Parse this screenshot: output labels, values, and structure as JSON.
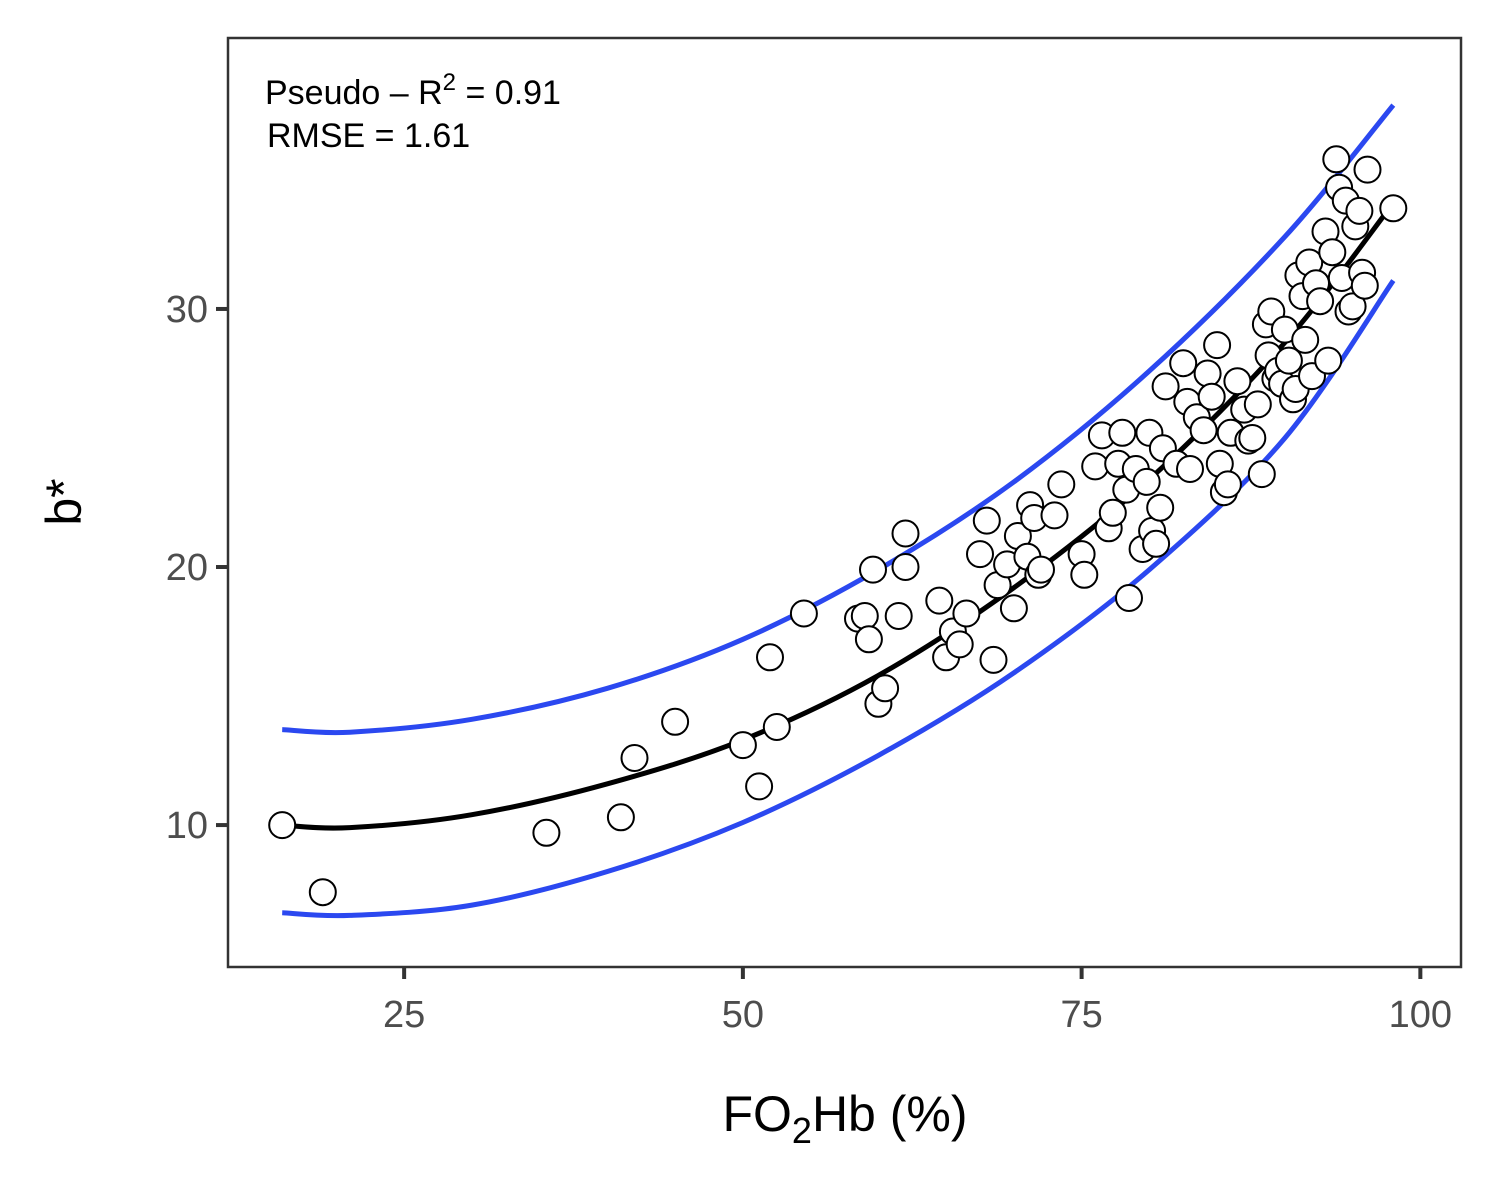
{
  "chart_data": {
    "type": "scatter",
    "xlabel_main": "FO",
    "xlabel_sub": "2",
    "xlabel_rest": "Hb (%)",
    "ylabel": "b*",
    "xlim": [
      12,
      103
    ],
    "ylim": [
      4.5,
      40.5
    ],
    "x_ticks": [
      25,
      50,
      75,
      100
    ],
    "x_tick_labels": [
      "25",
      "50",
      "75",
      "100"
    ],
    "y_ticks": [
      10,
      20,
      30
    ],
    "y_tick_labels": [
      "10",
      "20",
      "30"
    ],
    "grid": false,
    "annotation": {
      "r2_prefix": "Pseudo – R",
      "r2_sup": "2",
      "r2_value": " = 0.91",
      "rmse": "RMSE = 1.61"
    },
    "colors": {
      "fit": "#000000",
      "bounds": "#2b48f0",
      "point_fill": "#ffffff",
      "point_stroke": "#000000"
    },
    "fit": {
      "x_range": [
        16,
        98
      ],
      "points": [
        [
          16,
          10.0
        ],
        [
          21,
          9.9
        ],
        [
          30,
          10.4
        ],
        [
          40,
          11.6
        ],
        [
          50,
          13.3
        ],
        [
          60,
          15.8
        ],
        [
          70,
          19.2
        ],
        [
          80,
          23.4
        ],
        [
          90,
          28.7
        ],
        [
          98,
          34.1
        ]
      ]
    },
    "upper_bound": {
      "points": [
        [
          16,
          13.7
        ],
        [
          21,
          13.6
        ],
        [
          30,
          14.1
        ],
        [
          40,
          15.3
        ],
        [
          50,
          17.2
        ],
        [
          60,
          19.9
        ],
        [
          70,
          23.3
        ],
        [
          80,
          27.6
        ],
        [
          90,
          32.8
        ],
        [
          98,
          37.9
        ]
      ]
    },
    "lower_bound": {
      "points": [
        [
          16,
          6.6
        ],
        [
          21,
          6.5
        ],
        [
          30,
          6.9
        ],
        [
          40,
          8.2
        ],
        [
          50,
          10.1
        ],
        [
          60,
          12.7
        ],
        [
          70,
          15.9
        ],
        [
          80,
          19.9
        ],
        [
          90,
          25.0
        ],
        [
          98,
          31.1
        ]
      ]
    },
    "points": [
      [
        16,
        10.0
      ],
      [
        19,
        7.4
      ],
      [
        35.5,
        9.7
      ],
      [
        41,
        10.3
      ],
      [
        42,
        12.6
      ],
      [
        45,
        14.0
      ],
      [
        50,
        13.1
      ],
      [
        51.2,
        11.5
      ],
      [
        52,
        16.5
      ],
      [
        52.5,
        13.8
      ],
      [
        54.5,
        18.2
      ],
      [
        58.5,
        18.0
      ],
      [
        59,
        18.1
      ],
      [
        59.3,
        17.2
      ],
      [
        59.6,
        19.9
      ],
      [
        60,
        14.7
      ],
      [
        60.5,
        15.3
      ],
      [
        61.5,
        18.1
      ],
      [
        62,
        21.3
      ],
      [
        62,
        20.0
      ],
      [
        64.5,
        18.7
      ],
      [
        65,
        16.5
      ],
      [
        65.5,
        17.5
      ],
      [
        66,
        17.0
      ],
      [
        66.5,
        18.2
      ],
      [
        67.5,
        20.5
      ],
      [
        68,
        21.8
      ],
      [
        68.5,
        16.4
      ],
      [
        68.8,
        19.3
      ],
      [
        69.5,
        20.1
      ],
      [
        70,
        18.4
      ],
      [
        70.3,
        21.2
      ],
      [
        71,
        20.4
      ],
      [
        71.2,
        22.4
      ],
      [
        71.5,
        21.9
      ],
      [
        71.8,
        19.7
      ],
      [
        72,
        19.9
      ],
      [
        73,
        22.0
      ],
      [
        73.5,
        23.2
      ],
      [
        75,
        20.5
      ],
      [
        75.2,
        19.7
      ],
      [
        76,
        23.9
      ],
      [
        76.5,
        25.1
      ],
      [
        77,
        21.5
      ],
      [
        77.3,
        22.1
      ],
      [
        77.7,
        24.0
      ],
      [
        78,
        25.2
      ],
      [
        78.3,
        23.0
      ],
      [
        78.5,
        18.8
      ],
      [
        79,
        23.8
      ],
      [
        79.5,
        20.7
      ],
      [
        79.8,
        23.3
      ],
      [
        80,
        25.2
      ],
      [
        80.2,
        21.4
      ],
      [
        80.5,
        20.9
      ],
      [
        80.8,
        22.3
      ],
      [
        81,
        24.6
      ],
      [
        81.2,
        27.0
      ],
      [
        82,
        24.0
      ],
      [
        82.5,
        27.9
      ],
      [
        82.8,
        26.4
      ],
      [
        83,
        23.8
      ],
      [
        83.5,
        25.8
      ],
      [
        84,
        25.3
      ],
      [
        84.3,
        27.5
      ],
      [
        84.6,
        26.6
      ],
      [
        85,
        28.6
      ],
      [
        85.2,
        24.0
      ],
      [
        85.5,
        22.9
      ],
      [
        85.8,
        23.2
      ],
      [
        86,
        25.2
      ],
      [
        86.5,
        27.2
      ],
      [
        87,
        26.1
      ],
      [
        87.3,
        24.9
      ],
      [
        87.6,
        25.0
      ],
      [
        88,
        26.3
      ],
      [
        88.3,
        23.6
      ],
      [
        88.6,
        29.4
      ],
      [
        88.8,
        28.2
      ],
      [
        89,
        29.9
      ],
      [
        89.3,
        27.3
      ],
      [
        89.5,
        27.6
      ],
      [
        89.8,
        27.1
      ],
      [
        90,
        29.2
      ],
      [
        90.3,
        28.0
      ],
      [
        90.6,
        26.5
      ],
      [
        90.8,
        26.9
      ],
      [
        91,
        31.3
      ],
      [
        91.3,
        30.5
      ],
      [
        91.5,
        28.8
      ],
      [
        91.8,
        31.8
      ],
      [
        92,
        27.4
      ],
      [
        92.3,
        31.0
      ],
      [
        92.6,
        30.3
      ],
      [
        93,
        33.0
      ],
      [
        93.2,
        28.0
      ],
      [
        93.5,
        32.2
      ],
      [
        93.8,
        35.8
      ],
      [
        94,
        34.7
      ],
      [
        94.2,
        31.2
      ],
      [
        94.5,
        34.2
      ],
      [
        94.7,
        29.9
      ],
      [
        95,
        30.1
      ],
      [
        95.2,
        33.2
      ],
      [
        95.5,
        33.8
      ],
      [
        95.7,
        31.4
      ],
      [
        95.9,
        30.9
      ],
      [
        96.1,
        35.4
      ],
      [
        98,
        33.9
      ]
    ]
  }
}
